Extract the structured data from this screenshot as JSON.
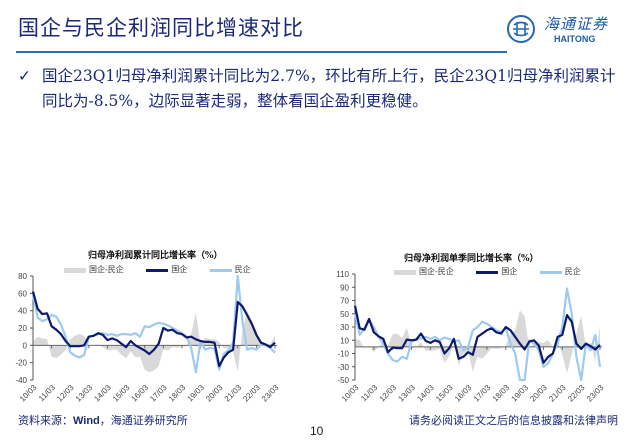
{
  "header": {
    "title": "国企与民企利润同比增速对比",
    "logo_cn": "海通证券",
    "logo_en": "HAITONG"
  },
  "bullet": {
    "icon": "✓",
    "text": "国企23Q1归母净利润累计同比为2.7%，环比有所上行，民企23Q1归母净利润累计同比为-8.5%，边际显著走弱，整体看国企盈利更稳健。"
  },
  "footer": {
    "source": "资料来源：",
    "source_bold": "Wind",
    "source_rest": "，海通证券研究所",
    "disclaimer": "请务必阅读正文之后的信息披露和法律声明",
    "page_number": "10"
  },
  "colors": {
    "soe": "#0d1a6b",
    "private": "#9ccaf0",
    "diff": "#d9d9d9",
    "title": "#1b2a78",
    "rule": "#2b6fb5"
  },
  "chart_data": [
    {
      "type": "line",
      "title": "归母净利润累计同比增长率（%）",
      "legend": [
        "国企-民企",
        "国企",
        "民企"
      ],
      "legend_position": "top",
      "xlabel": "",
      "ylabel": "",
      "ylim": [
        -40,
        80
      ],
      "yticks": [
        80,
        60,
        40,
        20,
        0,
        -20,
        -40
      ],
      "categories": [
        "10/03",
        "11/03",
        "12/03",
        "13/03",
        "14/03",
        "15/03",
        "16/03",
        "17/03",
        "18/03",
        "19/03",
        "20/03",
        "21/03",
        "22/03",
        "23/03"
      ],
      "x": [
        "10Q1",
        "10Q2",
        "10Q3",
        "10Q4",
        "11Q1",
        "11Q2",
        "11Q3",
        "11Q4",
        "12Q1",
        "12Q2",
        "12Q3",
        "12Q4",
        "13Q1",
        "13Q2",
        "13Q3",
        "13Q4",
        "14Q1",
        "14Q2",
        "14Q3",
        "14Q4",
        "15Q1",
        "15Q2",
        "15Q3",
        "15Q4",
        "16Q1",
        "16Q2",
        "16Q3",
        "16Q4",
        "17Q1",
        "17Q2",
        "17Q3",
        "17Q4",
        "18Q1",
        "18Q2",
        "18Q3",
        "18Q4",
        "19Q1",
        "19Q2",
        "19Q3",
        "19Q4",
        "20Q1",
        "20Q2",
        "20Q3",
        "20Q4",
        "21Q1",
        "21Q2",
        "21Q3",
        "21Q4",
        "22Q1",
        "22Q2",
        "22Q3",
        "22Q4",
        "23Q1"
      ],
      "series": [
        {
          "name": "国企",
          "type": "line",
          "values": [
            62,
            42,
            36,
            37,
            22,
            18,
            13,
            5,
            -1,
            -1,
            -1,
            0,
            10,
            11,
            14,
            12,
            6,
            8,
            6,
            2,
            -2,
            5,
            0,
            -3,
            -6,
            -10,
            -5,
            2,
            20,
            17,
            18,
            14,
            13,
            9,
            10,
            7,
            5,
            4,
            4,
            3,
            -24,
            -14,
            -8,
            -5,
            50,
            45,
            35,
            25,
            12,
            3,
            1,
            -2,
            3
          ]
        },
        {
          "name": "民企",
          "type": "line",
          "values": [
            58,
            32,
            28,
            30,
            35,
            33,
            24,
            10,
            -8,
            -12,
            -14,
            -11,
            10,
            11,
            13,
            14,
            12,
            13,
            11,
            13,
            13,
            12,
            14,
            10,
            22,
            21,
            24,
            26,
            25,
            23,
            20,
            17,
            14,
            10,
            -3,
            -31,
            5,
            -5,
            -3,
            -4,
            -28,
            -10,
            -5,
            3,
            80,
            28,
            -5,
            -3,
            -5,
            1,
            0,
            -3,
            -8.5
          ]
        },
        {
          "name": "国企-民企",
          "type": "area",
          "values": [
            4,
            10,
            8,
            7,
            -13,
            -15,
            -11,
            -5,
            7,
            11,
            13,
            11,
            0,
            0,
            1,
            -2,
            -6,
            -5,
            -5,
            -11,
            -15,
            -7,
            -14,
            -13,
            -28,
            -31,
            -29,
            -24,
            -5,
            -6,
            -2,
            -3,
            -1,
            -1,
            13,
            38,
            0,
            9,
            7,
            7,
            4,
            -4,
            -3,
            -8,
            -30,
            17,
            40,
            28,
            17,
            2,
            1,
            1,
            11.2
          ]
        }
      ]
    },
    {
      "type": "line",
      "title": "归母净利润单季同比增长率（%）",
      "legend": [
        "国企-民企",
        "国企",
        "民企"
      ],
      "legend_position": "top",
      "xlabel": "",
      "ylabel": "",
      "ylim": [
        -50,
        110
      ],
      "yticks": [
        110,
        90,
        70,
        50,
        30,
        10,
        -10,
        -30,
        -50
      ],
      "categories": [
        "10/03",
        "11/03",
        "12/03",
        "13/03",
        "14/03",
        "15/03",
        "16/03",
        "17/03",
        "18/03",
        "19/03",
        "20/03",
        "21/03",
        "22/03",
        "23/03"
      ],
      "x": [
        "10Q1",
        "10Q2",
        "10Q3",
        "10Q4",
        "11Q1",
        "11Q2",
        "11Q3",
        "11Q4",
        "12Q1",
        "12Q2",
        "12Q3",
        "12Q4",
        "13Q1",
        "13Q2",
        "13Q3",
        "13Q4",
        "14Q1",
        "14Q2",
        "14Q3",
        "14Q4",
        "15Q1",
        "15Q2",
        "15Q3",
        "15Q4",
        "16Q1",
        "16Q2",
        "16Q3",
        "16Q4",
        "17Q1",
        "17Q2",
        "17Q3",
        "17Q4",
        "18Q1",
        "18Q2",
        "18Q3",
        "18Q4",
        "19Q1",
        "19Q2",
        "19Q3",
        "19Q4",
        "20Q1",
        "20Q2",
        "20Q3",
        "20Q4",
        "21Q1",
        "21Q2",
        "21Q3",
        "21Q4",
        "22Q1",
        "22Q2",
        "22Q3",
        "22Q4",
        "23Q1"
      ],
      "series": [
        {
          "name": "国企",
          "type": "line",
          "values": [
            62,
            28,
            26,
            42,
            22,
            16,
            12,
            -8,
            -1,
            -2,
            -2,
            11,
            10,
            11,
            20,
            9,
            6,
            10,
            7,
            -10,
            -2,
            12,
            -18,
            -15,
            -8,
            -12,
            15,
            20,
            25,
            28,
            22,
            20,
            30,
            25,
            15,
            5,
            -4,
            8,
            10,
            2,
            -24,
            -15,
            -10,
            15,
            18,
            48,
            38,
            5,
            -3,
            5,
            1,
            -4,
            3
          ]
        },
        {
          "name": "民企",
          "type": "line",
          "values": [
            50,
            18,
            28,
            40,
            30,
            15,
            5,
            -10,
            -20,
            -22,
            -15,
            -18,
            8,
            11,
            13,
            15,
            12,
            15,
            10,
            14,
            12,
            8,
            10,
            -5,
            0,
            25,
            30,
            38,
            35,
            30,
            25,
            22,
            28,
            5,
            -10,
            -50,
            -50,
            10,
            5,
            -5,
            -30,
            -25,
            -10,
            5,
            30,
            88,
            50,
            -15,
            -50,
            5,
            -5,
            18,
            -30
          ]
        },
        {
          "name": "国企-民企",
          "type": "area",
          "values": [
            12,
            10,
            -2,
            2,
            -8,
            1,
            7,
            2,
            19,
            20,
            13,
            29,
            2,
            0,
            7,
            -6,
            -6,
            -5,
            -3,
            -24,
            -14,
            4,
            -28,
            -10,
            -8,
            -37,
            -15,
            -18,
            -10,
            -2,
            -3,
            -2,
            2,
            20,
            25,
            55,
            46,
            -2,
            5,
            7,
            6,
            10,
            0,
            10,
            -12,
            -40,
            -12,
            20,
            47,
            0,
            6,
            -22,
            33
          ]
        }
      ]
    }
  ]
}
